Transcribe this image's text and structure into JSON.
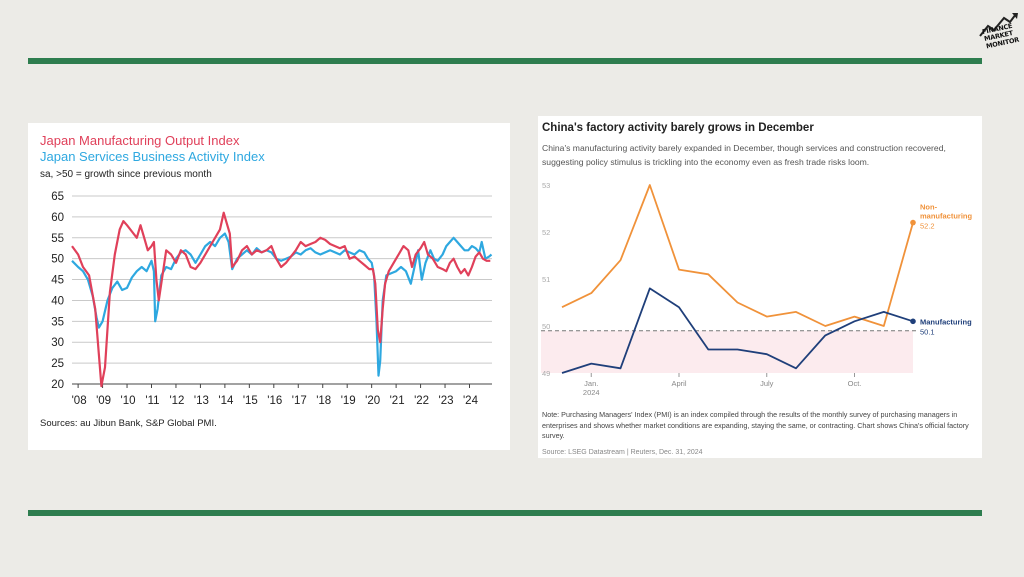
{
  "logo": {
    "line1": "FINANCE",
    "line2": "MARKET",
    "line3": "MONITOR"
  },
  "left_panel": {
    "title_manufacturing": "Japan Manufacturing Output Index",
    "title_services": "Japan Services Business Activity Index",
    "subtitle": "sa, >50 = growth since previous month",
    "source": "Sources: au Jibun Bank, S&P Global PMI."
  },
  "right_panel": {
    "title": "China's factory activity barely grows in December",
    "subtitle": "China's manufacturing activity barely expanded in December, though services and construction recovered, suggesting policy stimulus is trickling into the economy even as fresh trade risks loom.",
    "note": "Note: Purchasing Managers' Index (PMI) is an index compiled through the results of the monthly survey of purchasing managers in enterprises and shows whether market conditions are expanding, staying the same, or contracting. Chart shows China's official factory survey.",
    "source": "Source: LSEG Datastream | Reuters, Dec. 31, 2024"
  },
  "chart_data": [
    {
      "type": "line",
      "ylim": [
        20,
        65
      ],
      "y_ticks": [
        "20",
        "25",
        "30",
        "35",
        "40",
        "45",
        "50",
        "55",
        "60",
        "65"
      ],
      "x_tick_labels": [
        "'08",
        "'09",
        "'10",
        "'11",
        "'12",
        "'13",
        "'14",
        "'15",
        "'16",
        "'17",
        "'18",
        "'19",
        "'20",
        "'21",
        "'22",
        "'23",
        "'24"
      ],
      "x_tick_years": [
        2008,
        2009,
        2010,
        2011,
        2012,
        2013,
        2014,
        2015,
        2016,
        2017,
        2018,
        2019,
        2020,
        2021,
        2022,
        2023,
        2024
      ],
      "xlim": [
        2007.75,
        2024.92
      ],
      "grid": true,
      "series": [
        {
          "name": "Japan Manufacturing Output Index",
          "color": "#e0405a",
          "points": [
            [
              2007.75,
              53
            ],
            [
              2008.0,
              51
            ],
            [
              2008.2,
              48
            ],
            [
              2008.45,
              46
            ],
            [
              2008.7,
              38
            ],
            [
              2008.85,
              27
            ],
            [
              2008.95,
              19.5
            ],
            [
              2009.1,
              24
            ],
            [
              2009.3,
              42
            ],
            [
              2009.5,
              51
            ],
            [
              2009.7,
              57
            ],
            [
              2009.85,
              59
            ],
            [
              2010.0,
              58
            ],
            [
              2010.2,
              56.5
            ],
            [
              2010.4,
              55
            ],
            [
              2010.55,
              58
            ],
            [
              2010.7,
              55
            ],
            [
              2010.85,
              52
            ],
            [
              2011.0,
              53
            ],
            [
              2011.1,
              54
            ],
            [
              2011.2,
              45
            ],
            [
              2011.3,
              40
            ],
            [
              2011.45,
              46
            ],
            [
              2011.6,
              52
            ],
            [
              2011.8,
              51
            ],
            [
              2012.0,
              49
            ],
            [
              2012.2,
              52
            ],
            [
              2012.4,
              51
            ],
            [
              2012.6,
              48
            ],
            [
              2012.8,
              47.5
            ],
            [
              2013.0,
              49
            ],
            [
              2013.2,
              51
            ],
            [
              2013.4,
              53
            ],
            [
              2013.6,
              55
            ],
            [
              2013.8,
              57
            ],
            [
              2013.95,
              61
            ],
            [
              2014.05,
              59
            ],
            [
              2014.2,
              56
            ],
            [
              2014.3,
              48
            ],
            [
              2014.5,
              49.5
            ],
            [
              2014.7,
              52
            ],
            [
              2014.9,
              53
            ],
            [
              2015.1,
              51
            ],
            [
              2015.3,
              52
            ],
            [
              2015.5,
              51.5
            ],
            [
              2015.7,
              52
            ],
            [
              2015.9,
              53
            ],
            [
              2016.1,
              50
            ],
            [
              2016.3,
              48
            ],
            [
              2016.5,
              49
            ],
            [
              2016.7,
              50.5
            ],
            [
              2016.9,
              52
            ],
            [
              2017.1,
              54
            ],
            [
              2017.3,
              53
            ],
            [
              2017.5,
              53.5
            ],
            [
              2017.7,
              54
            ],
            [
              2017.9,
              55
            ],
            [
              2018.1,
              54.5
            ],
            [
              2018.3,
              53.5
            ],
            [
              2018.5,
              53
            ],
            [
              2018.7,
              52.5
            ],
            [
              2018.9,
              53
            ],
            [
              2019.1,
              50
            ],
            [
              2019.3,
              50.5
            ],
            [
              2019.5,
              49.5
            ],
            [
              2019.7,
              48.5
            ],
            [
              2019.9,
              47.5
            ],
            [
              2020.05,
              47.5
            ],
            [
              2020.15,
              44
            ],
            [
              2020.25,
              33
            ],
            [
              2020.35,
              30
            ],
            [
              2020.45,
              38
            ],
            [
              2020.55,
              44
            ],
            [
              2020.7,
              47
            ],
            [
              2020.9,
              49
            ],
            [
              2021.1,
              51
            ],
            [
              2021.3,
              53
            ],
            [
              2021.5,
              52
            ],
            [
              2021.65,
              48
            ],
            [
              2021.8,
              51
            ],
            [
              2022.0,
              52.5
            ],
            [
              2022.15,
              54
            ],
            [
              2022.3,
              51
            ],
            [
              2022.5,
              50
            ],
            [
              2022.7,
              48
            ],
            [
              2022.9,
              47.5
            ],
            [
              2023.05,
              47
            ],
            [
              2023.2,
              49
            ],
            [
              2023.35,
              50
            ],
            [
              2023.5,
              48
            ],
            [
              2023.65,
              46.5
            ],
            [
              2023.8,
              47.5
            ],
            [
              2023.95,
              46
            ],
            [
              2024.1,
              48
            ],
            [
              2024.25,
              50.5
            ],
            [
              2024.4,
              51.5
            ],
            [
              2024.55,
              50
            ],
            [
              2024.7,
              49.5
            ],
            [
              2024.85,
              49.5
            ]
          ]
        },
        {
          "name": "Japan Services Business Activity Index",
          "color": "#2ea8e0",
          "points": [
            [
              2007.75,
              49.5
            ],
            [
              2008.0,
              48
            ],
            [
              2008.2,
              47
            ],
            [
              2008.4,
              45
            ],
            [
              2008.6,
              41
            ],
            [
              2008.75,
              36
            ],
            [
              2008.85,
              33.5
            ],
            [
              2009.0,
              35
            ],
            [
              2009.2,
              40
            ],
            [
              2009.4,
              43
            ],
            [
              2009.6,
              44.5
            ],
            [
              2009.8,
              42.5
            ],
            [
              2010.0,
              43
            ],
            [
              2010.2,
              45.5
            ],
            [
              2010.4,
              47
            ],
            [
              2010.6,
              48
            ],
            [
              2010.8,
              47
            ],
            [
              2011.0,
              49.5
            ],
            [
              2011.1,
              47
            ],
            [
              2011.15,
              35
            ],
            [
              2011.25,
              38
            ],
            [
              2011.4,
              46
            ],
            [
              2011.6,
              48
            ],
            [
              2011.8,
              47.5
            ],
            [
              2012.0,
              50
            ],
            [
              2012.2,
              51.5
            ],
            [
              2012.4,
              52
            ],
            [
              2012.6,
              51
            ],
            [
              2012.8,
              49
            ],
            [
              2013.0,
              51
            ],
            [
              2013.2,
              53
            ],
            [
              2013.4,
              54
            ],
            [
              2013.6,
              53
            ],
            [
              2013.8,
              55
            ],
            [
              2014.0,
              56
            ],
            [
              2014.15,
              54
            ],
            [
              2014.3,
              47.5
            ],
            [
              2014.5,
              50
            ],
            [
              2014.7,
              51
            ],
            [
              2014.9,
              52
            ],
            [
              2015.1,
              51
            ],
            [
              2015.3,
              52.5
            ],
            [
              2015.5,
              51.5
            ],
            [
              2015.7,
              52
            ],
            [
              2015.9,
              51.5
            ],
            [
              2016.1,
              50
            ],
            [
              2016.3,
              49.5
            ],
            [
              2016.5,
              50
            ],
            [
              2016.7,
              50.5
            ],
            [
              2016.9,
              51.5
            ],
            [
              2017.1,
              51
            ],
            [
              2017.3,
              52
            ],
            [
              2017.5,
              52.5
            ],
            [
              2017.7,
              51.5
            ],
            [
              2017.9,
              51
            ],
            [
              2018.1,
              51.5
            ],
            [
              2018.3,
              52
            ],
            [
              2018.5,
              51.5
            ],
            [
              2018.7,
              51
            ],
            [
              2018.9,
              52
            ],
            [
              2019.1,
              51.5
            ],
            [
              2019.3,
              51
            ],
            [
              2019.5,
              52
            ],
            [
              2019.7,
              51.5
            ],
            [
              2019.85,
              50
            ],
            [
              2020.0,
              49
            ],
            [
              2020.1,
              46
            ],
            [
              2020.2,
              35
            ],
            [
              2020.28,
              22
            ],
            [
              2020.35,
              25.5
            ],
            [
              2020.45,
              40
            ],
            [
              2020.6,
              46
            ],
            [
              2020.8,
              46.5
            ],
            [
              2021.0,
              47
            ],
            [
              2021.2,
              48
            ],
            [
              2021.4,
              47
            ],
            [
              2021.6,
              44
            ],
            [
              2021.75,
              48
            ],
            [
              2021.9,
              52
            ],
            [
              2022.05,
              45
            ],
            [
              2022.2,
              49
            ],
            [
              2022.4,
              52
            ],
            [
              2022.55,
              50
            ],
            [
              2022.7,
              49.5
            ],
            [
              2022.9,
              51
            ],
            [
              2023.05,
              53
            ],
            [
              2023.2,
              54
            ],
            [
              2023.35,
              55
            ],
            [
              2023.5,
              54
            ],
            [
              2023.65,
              53
            ],
            [
              2023.8,
              52
            ],
            [
              2023.95,
              52
            ],
            [
              2024.1,
              53
            ],
            [
              2024.25,
              52.5
            ],
            [
              2024.4,
              51.5
            ],
            [
              2024.5,
              54
            ],
            [
              2024.65,
              50
            ],
            [
              2024.8,
              50.5
            ],
            [
              2024.9,
              51
            ]
          ]
        }
      ]
    },
    {
      "type": "line",
      "x": [
        "2023-12",
        "2024-01",
        "2024-02",
        "2024-03",
        "2024-04",
        "2024-05",
        "2024-06",
        "2024-07",
        "2024-08",
        "2024-09",
        "2024-10",
        "2024-11",
        "2024-12"
      ],
      "x_tick_labels": [
        "Jan.\n2024",
        "April",
        "July",
        "Oct."
      ],
      "x_tick_index": [
        1,
        4,
        7,
        10
      ],
      "ylim": [
        49,
        53
      ],
      "y_tick_labels": [
        "49",
        "50",
        "51",
        "52",
        "53"
      ],
      "reference_line": 49.9,
      "series": [
        {
          "name": "Non-manufacturing",
          "color": "#f0923a",
          "end_label": "Non-\nmanufacturing",
          "end_value": "52.2",
          "values": [
            50.4,
            50.7,
            51.4,
            53.0,
            51.2,
            51.1,
            50.5,
            50.2,
            50.3,
            50.0,
            50.2,
            50.0,
            52.2
          ]
        },
        {
          "name": "Manufacturing",
          "color": "#1f3f7a",
          "end_label": "Manufacturing",
          "end_value": "50.1",
          "values": [
            49.0,
            49.2,
            49.1,
            50.8,
            50.4,
            49.5,
            49.5,
            49.4,
            49.1,
            49.8,
            50.1,
            50.3,
            50.1
          ]
        }
      ]
    }
  ]
}
